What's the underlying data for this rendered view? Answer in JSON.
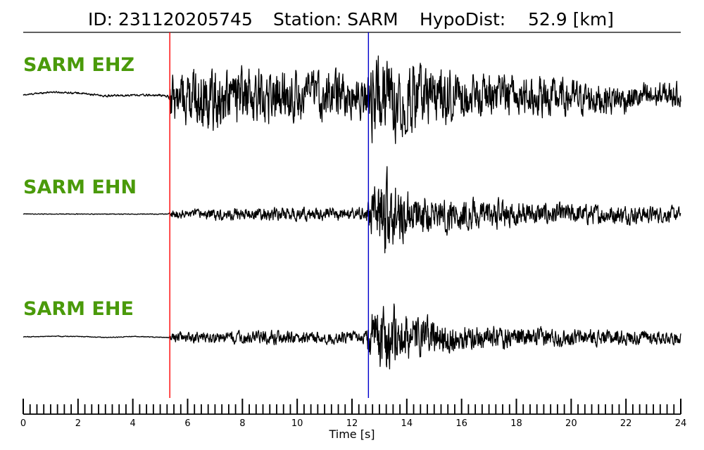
{
  "title": {
    "id_text": "ID: 231120205745",
    "station_text": "Station: SARM",
    "hypodist_text": "HypoDist:    52.9 [km]"
  },
  "colors": {
    "label": "#4a9a0a",
    "p_pick": "#ff0000",
    "s_pick": "#0000cc",
    "trace": "#000000"
  },
  "chart_data": {
    "type": "line",
    "xlabel": "Time [s]",
    "xlim": [
      0,
      24
    ],
    "x_ticks": [
      0,
      2,
      4,
      6,
      8,
      10,
      12,
      14,
      16,
      18,
      20,
      22,
      24
    ],
    "minor_tick_step": 0.25,
    "picks": [
      {
        "phase": "P",
        "time": 5.35,
        "color": "#ff0000"
      },
      {
        "phase": "S",
        "time": 12.6,
        "color": "#0000cc"
      }
    ],
    "traces": [
      {
        "label": "SARM EHZ",
        "envelope": [
          [
            0,
            0.02
          ],
          [
            5.3,
            0.03
          ],
          [
            5.4,
            0.55
          ],
          [
            6.5,
            0.8
          ],
          [
            8,
            0.75
          ],
          [
            10,
            0.6
          ],
          [
            12.5,
            0.55
          ],
          [
            12.7,
            1.0
          ],
          [
            14,
            0.95
          ],
          [
            16,
            0.55
          ],
          [
            18,
            0.5
          ],
          [
            20,
            0.45
          ],
          [
            22,
            0.35
          ],
          [
            24,
            0.3
          ]
        ],
        "drift": [
          [
            0,
            0.1
          ],
          [
            1,
            0.25
          ],
          [
            2,
            0.2
          ],
          [
            3,
            0.05
          ],
          [
            4,
            0.1
          ],
          [
            5,
            0.08
          ],
          [
            7,
            -0.2
          ],
          [
            8,
            0
          ],
          [
            10,
            0.1
          ],
          [
            12,
            0.05
          ],
          [
            14,
            0
          ],
          [
            16,
            0.1
          ],
          [
            18,
            0.05
          ],
          [
            20,
            -0.05
          ],
          [
            22,
            -0.1
          ],
          [
            24,
            0.15
          ]
        ]
      },
      {
        "label": "SARM EHN",
        "envelope": [
          [
            0,
            0.01
          ],
          [
            5.3,
            0.01
          ],
          [
            5.4,
            0.1
          ],
          [
            8,
            0.15
          ],
          [
            10,
            0.15
          ],
          [
            12.5,
            0.15
          ],
          [
            12.6,
            0.45
          ],
          [
            13.2,
            1.0
          ],
          [
            14,
            0.55
          ],
          [
            16,
            0.4
          ],
          [
            18,
            0.3
          ],
          [
            20,
            0.25
          ],
          [
            22,
            0.22
          ],
          [
            24,
            0.18
          ]
        ],
        "drift": [
          [
            0,
            0.02
          ],
          [
            24,
            0.0
          ]
        ]
      },
      {
        "label": "SARM EHE",
        "envelope": [
          [
            0,
            0.01
          ],
          [
            5.3,
            0.01
          ],
          [
            5.4,
            0.12
          ],
          [
            8,
            0.15
          ],
          [
            10,
            0.15
          ],
          [
            12.5,
            0.14
          ],
          [
            12.6,
            0.5
          ],
          [
            13.2,
            1.0
          ],
          [
            14,
            0.55
          ],
          [
            16,
            0.3
          ],
          [
            18,
            0.25
          ],
          [
            20,
            0.2
          ],
          [
            22,
            0.18
          ],
          [
            24,
            0.15
          ]
        ],
        "drift": [
          [
            0,
            0.03
          ],
          [
            1,
            0.06
          ],
          [
            2,
            0.05
          ],
          [
            3,
            0.0
          ],
          [
            4,
            0.05
          ],
          [
            5.3,
            0.0
          ],
          [
            24,
            0.0
          ]
        ]
      }
    ]
  }
}
